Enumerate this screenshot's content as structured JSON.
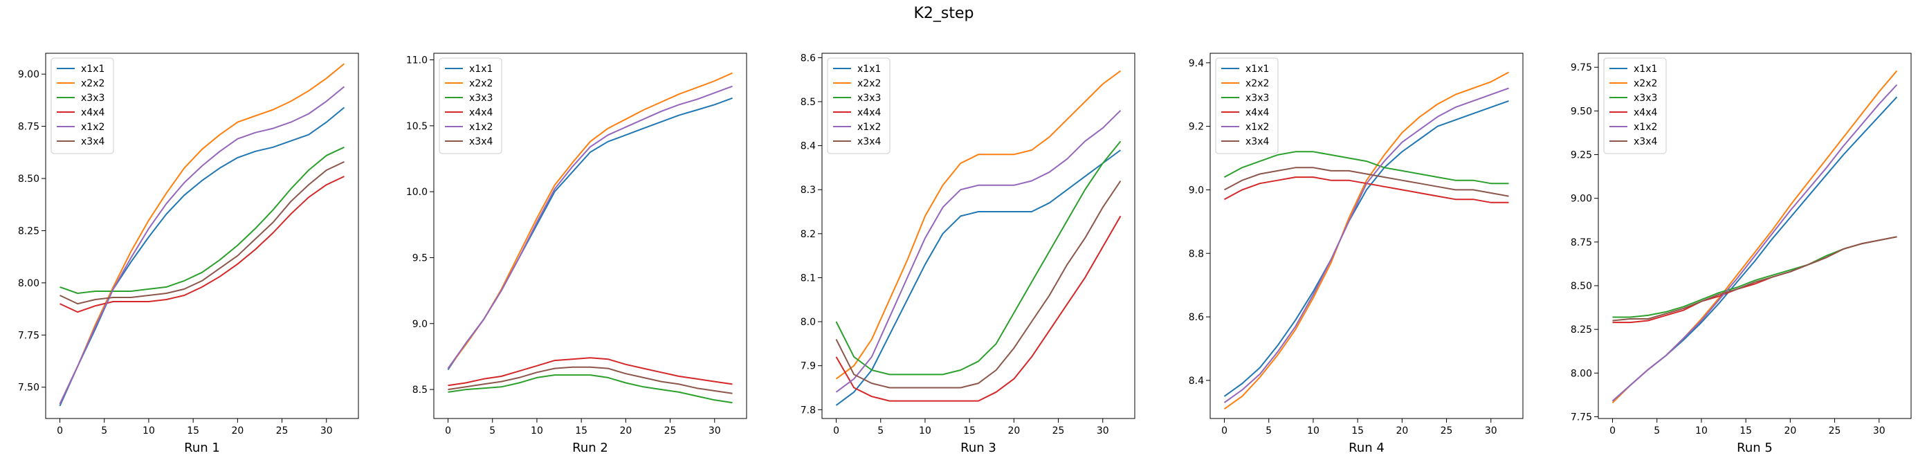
{
  "figure_title": "K2_step",
  "colors": {
    "x1x1": "#1f77b4",
    "x2x2": "#ff7f0e",
    "x3x3": "#2ca02c",
    "x4x4": "#d62728",
    "x1x2": "#9467bd",
    "x3x4": "#8c564b"
  },
  "chart_data": [
    {
      "type": "line",
      "xlabel": "Run 1",
      "xlim": [
        -1.6,
        33.6
      ],
      "xticks": [
        0,
        5,
        10,
        15,
        20,
        25,
        30
      ],
      "ylim": [
        7.35,
        9.1
      ],
      "yticks": [
        7.5,
        7.75,
        8.0,
        8.25,
        8.5,
        8.75,
        9.0
      ],
      "ytick_labels": [
        "7.50",
        "7.75",
        "8.00",
        "8.25",
        "8.50",
        "8.75",
        "9.00"
      ],
      "legend": "top-left",
      "x": [
        0,
        2,
        4,
        6,
        8,
        10,
        12,
        14,
        16,
        18,
        20,
        22,
        24,
        26,
        28,
        30,
        32
      ],
      "series": [
        {
          "name": "x1x1",
          "values": [
            7.41,
            7.6,
            7.78,
            7.97,
            8.1,
            8.22,
            8.33,
            8.42,
            8.49,
            8.55,
            8.6,
            8.63,
            8.65,
            8.68,
            8.71,
            8.77,
            8.84
          ]
        },
        {
          "name": "x2x2",
          "values": [
            7.42,
            7.6,
            7.8,
            7.98,
            8.15,
            8.3,
            8.43,
            8.55,
            8.64,
            8.71,
            8.77,
            8.8,
            8.83,
            8.87,
            8.92,
            8.98,
            9.05
          ]
        },
        {
          "name": "x3x3",
          "values": [
            7.98,
            7.95,
            7.96,
            7.96,
            7.96,
            7.97,
            7.98,
            8.01,
            8.05,
            8.11,
            8.18,
            8.26,
            8.35,
            8.45,
            8.54,
            8.61,
            8.65
          ]
        },
        {
          "name": "x4x4",
          "values": [
            7.9,
            7.86,
            7.89,
            7.91,
            7.91,
            7.91,
            7.92,
            7.94,
            7.98,
            8.03,
            8.09,
            8.16,
            8.24,
            8.33,
            8.41,
            8.47,
            8.51
          ]
        },
        {
          "name": "x1x2",
          "values": [
            7.42,
            7.6,
            7.79,
            7.97,
            8.12,
            8.26,
            8.38,
            8.48,
            8.56,
            8.63,
            8.69,
            8.72,
            8.74,
            8.77,
            8.81,
            8.87,
            8.94
          ]
        },
        {
          "name": "x3x4",
          "values": [
            7.94,
            7.9,
            7.92,
            7.93,
            7.93,
            7.94,
            7.95,
            7.97,
            8.01,
            8.07,
            8.13,
            8.21,
            8.29,
            8.39,
            8.47,
            8.54,
            8.58
          ]
        }
      ]
    },
    {
      "type": "line",
      "xlabel": "Run 2",
      "xlim": [
        -1.6,
        33.6
      ],
      "xticks": [
        0,
        5,
        10,
        15,
        20,
        25,
        30
      ],
      "ylim": [
        8.28,
        11.05
      ],
      "yticks": [
        8.5,
        9.0,
        9.5,
        10.0,
        10.5,
        11.0
      ],
      "ytick_labels": [
        "8.5",
        "9.0",
        "9.5",
        "10.0",
        "10.5",
        "11.0"
      ],
      "legend": "top-left",
      "x": [
        0,
        2,
        4,
        6,
        8,
        10,
        12,
        14,
        16,
        18,
        20,
        22,
        24,
        26,
        28,
        30,
        32
      ],
      "series": [
        {
          "name": "x1x1",
          "values": [
            8.65,
            8.85,
            9.03,
            9.25,
            9.5,
            9.75,
            10.0,
            10.15,
            10.3,
            10.38,
            10.43,
            10.48,
            10.53,
            10.58,
            10.62,
            10.66,
            10.71
          ]
        },
        {
          "name": "x2x2",
          "values": [
            8.66,
            8.84,
            9.03,
            9.26,
            9.53,
            9.8,
            10.05,
            10.22,
            10.38,
            10.48,
            10.55,
            10.62,
            10.68,
            10.74,
            10.79,
            10.84,
            10.9
          ]
        },
        {
          "name": "x3x3",
          "values": [
            8.48,
            8.5,
            8.51,
            8.52,
            8.55,
            8.59,
            8.61,
            8.61,
            8.61,
            8.59,
            8.55,
            8.52,
            8.5,
            8.48,
            8.45,
            8.42,
            8.4
          ]
        },
        {
          "name": "x4x4",
          "values": [
            8.53,
            8.55,
            8.58,
            8.6,
            8.64,
            8.68,
            8.72,
            8.73,
            8.74,
            8.73,
            8.69,
            8.66,
            8.63,
            8.6,
            8.58,
            8.56,
            8.54
          ]
        },
        {
          "name": "x1x2",
          "values": [
            8.66,
            8.85,
            9.03,
            9.25,
            9.5,
            9.77,
            10.02,
            10.19,
            10.34,
            10.43,
            10.49,
            10.55,
            10.61,
            10.66,
            10.7,
            10.75,
            10.8
          ]
        },
        {
          "name": "x3x4",
          "values": [
            8.5,
            8.52,
            8.54,
            8.56,
            8.59,
            8.63,
            8.66,
            8.67,
            8.67,
            8.66,
            8.62,
            8.59,
            8.56,
            8.54,
            8.51,
            8.49,
            8.47
          ]
        }
      ]
    },
    {
      "type": "line",
      "xlabel": "Run 3",
      "xlim": [
        -1.6,
        33.6
      ],
      "xticks": [
        0,
        5,
        10,
        15,
        20,
        25,
        30
      ],
      "ylim": [
        7.78,
        8.61
      ],
      "yticks": [
        7.8,
        7.9,
        8.0,
        8.1,
        8.2,
        8.3,
        8.4,
        8.5,
        8.6
      ],
      "ytick_labels": [
        "7.8",
        "7.9",
        "8.0",
        "8.1",
        "8.2",
        "8.3",
        "8.4",
        "8.5",
        "8.6"
      ],
      "legend": "top-left",
      "x": [
        0,
        2,
        4,
        6,
        8,
        10,
        12,
        14,
        16,
        18,
        20,
        22,
        24,
        26,
        28,
        30,
        32
      ],
      "series": [
        {
          "name": "x1x1",
          "values": [
            7.81,
            7.84,
            7.89,
            7.97,
            8.05,
            8.13,
            8.2,
            8.24,
            8.25,
            8.25,
            8.25,
            8.25,
            8.27,
            8.3,
            8.33,
            8.36,
            8.39
          ]
        },
        {
          "name": "x2x2",
          "values": [
            7.87,
            7.9,
            7.96,
            8.05,
            8.14,
            8.24,
            8.31,
            8.36,
            8.38,
            8.38,
            8.38,
            8.39,
            8.42,
            8.46,
            8.5,
            8.54,
            8.57
          ]
        },
        {
          "name": "x3x3",
          "values": [
            8.0,
            7.92,
            7.89,
            7.88,
            7.88,
            7.88,
            7.88,
            7.89,
            7.91,
            7.95,
            8.02,
            8.09,
            8.16,
            8.23,
            8.3,
            8.36,
            8.41
          ]
        },
        {
          "name": "x4x4",
          "values": [
            7.92,
            7.85,
            7.83,
            7.82,
            7.82,
            7.82,
            7.82,
            7.82,
            7.82,
            7.84,
            7.87,
            7.92,
            7.98,
            8.04,
            8.1,
            8.17,
            8.24
          ]
        },
        {
          "name": "x1x2",
          "values": [
            7.84,
            7.87,
            7.92,
            8.01,
            8.1,
            8.19,
            8.26,
            8.3,
            8.31,
            8.31,
            8.31,
            8.32,
            8.34,
            8.37,
            8.41,
            8.44,
            8.48
          ]
        },
        {
          "name": "x3x4",
          "values": [
            7.96,
            7.88,
            7.86,
            7.85,
            7.85,
            7.85,
            7.85,
            7.85,
            7.86,
            7.89,
            7.94,
            8.0,
            8.06,
            8.13,
            8.19,
            8.26,
            8.32
          ]
        }
      ]
    },
    {
      "type": "line",
      "xlabel": "Run 4",
      "xlim": [
        -1.6,
        33.6
      ],
      "xticks": [
        0,
        5,
        10,
        15,
        20,
        25,
        30
      ],
      "ylim": [
        8.28,
        9.43
      ],
      "yticks": [
        8.4,
        8.6,
        8.8,
        9.0,
        9.2,
        9.4
      ],
      "ytick_labels": [
        "8.4",
        "8.6",
        "8.8",
        "9.0",
        "9.2",
        "9.4"
      ],
      "legend": "top-left",
      "x": [
        0,
        2,
        4,
        6,
        8,
        10,
        12,
        14,
        16,
        18,
        20,
        22,
        24,
        26,
        28,
        30,
        32
      ],
      "series": [
        {
          "name": "x1x1",
          "values": [
            8.35,
            8.39,
            8.44,
            8.51,
            8.59,
            8.68,
            8.78,
            8.9,
            9.0,
            9.07,
            9.12,
            9.16,
            9.2,
            9.22,
            9.24,
            9.26,
            9.28
          ]
        },
        {
          "name": "x2x2",
          "values": [
            8.31,
            8.35,
            8.41,
            8.48,
            8.56,
            8.66,
            8.77,
            8.91,
            9.03,
            9.11,
            9.18,
            9.23,
            9.27,
            9.3,
            9.32,
            9.34,
            9.37
          ]
        },
        {
          "name": "x3x3",
          "values": [
            9.04,
            9.07,
            9.09,
            9.11,
            9.12,
            9.12,
            9.11,
            9.1,
            9.09,
            9.07,
            9.06,
            9.05,
            9.04,
            9.03,
            9.03,
            9.02,
            9.02
          ]
        },
        {
          "name": "x4x4",
          "values": [
            8.97,
            9.0,
            9.02,
            9.03,
            9.04,
            9.04,
            9.03,
            9.03,
            9.02,
            9.01,
            9.0,
            8.99,
            8.98,
            8.97,
            8.97,
            8.96,
            8.96
          ]
        },
        {
          "name": "x1x2",
          "values": [
            8.33,
            8.37,
            8.42,
            8.49,
            8.57,
            8.67,
            8.78,
            8.9,
            9.02,
            9.09,
            9.15,
            9.19,
            9.23,
            9.26,
            9.28,
            9.3,
            9.32
          ]
        },
        {
          "name": "x3x4",
          "values": [
            9.0,
            9.03,
            9.05,
            9.06,
            9.07,
            9.07,
            9.06,
            9.06,
            9.05,
            9.04,
            9.03,
            9.02,
            9.01,
            9.0,
            9.0,
            8.99,
            8.98
          ]
        }
      ]
    },
    {
      "type": "line",
      "xlabel": "Run 5",
      "xlim": [
        -1.6,
        33.6
      ],
      "xticks": [
        0,
        5,
        10,
        15,
        20,
        25,
        30
      ],
      "ylim": [
        7.74,
        9.83
      ],
      "yticks": [
        7.75,
        8.0,
        8.25,
        8.5,
        8.75,
        9.0,
        9.25,
        9.5,
        9.75
      ],
      "ytick_labels": [
        "7.75",
        "8.00",
        "8.25",
        "8.50",
        "8.75",
        "9.00",
        "9.25",
        "9.50",
        "9.75"
      ],
      "legend": "top-left",
      "x": [
        0,
        2,
        4,
        6,
        8,
        10,
        12,
        14,
        16,
        18,
        20,
        22,
        24,
        26,
        28,
        30,
        32
      ],
      "series": [
        {
          "name": "x1x1",
          "values": [
            7.84,
            7.93,
            8.02,
            8.1,
            8.19,
            8.29,
            8.4,
            8.52,
            8.64,
            8.77,
            8.89,
            9.01,
            9.13,
            9.25,
            9.36,
            9.47,
            9.58
          ]
        },
        {
          "name": "x2x2",
          "values": [
            7.83,
            7.93,
            8.02,
            8.1,
            8.2,
            8.31,
            8.43,
            8.56,
            8.69,
            8.82,
            8.96,
            9.09,
            9.22,
            9.35,
            9.48,
            9.61,
            9.73
          ]
        },
        {
          "name": "x3x3",
          "values": [
            8.32,
            8.32,
            8.33,
            8.35,
            8.38,
            8.42,
            8.46,
            8.49,
            8.53,
            8.56,
            8.59,
            8.62,
            8.67,
            8.71,
            8.74,
            8.76,
            8.78
          ]
        },
        {
          "name": "x4x4",
          "values": [
            8.29,
            8.29,
            8.3,
            8.33,
            8.36,
            8.41,
            8.44,
            8.48,
            8.51,
            8.55,
            8.58,
            8.62,
            8.66,
            8.71,
            8.74,
            8.76,
            8.78
          ]
        },
        {
          "name": "x1x2",
          "values": [
            7.84,
            7.93,
            8.02,
            8.1,
            8.2,
            8.3,
            8.42,
            8.54,
            8.67,
            8.8,
            8.93,
            9.05,
            9.17,
            9.3,
            9.42,
            9.54,
            9.65
          ]
        },
        {
          "name": "x3x4",
          "values": [
            8.3,
            8.31,
            8.31,
            8.34,
            8.37,
            8.41,
            8.45,
            8.48,
            8.52,
            8.55,
            8.58,
            8.62,
            8.66,
            8.71,
            8.74,
            8.76,
            8.78
          ]
        }
      ]
    }
  ]
}
